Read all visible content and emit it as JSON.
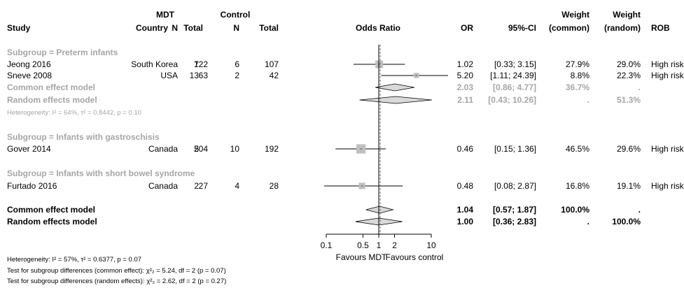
{
  "headers": {
    "study": "Study",
    "country": "Country",
    "mdt": "MDT",
    "control": "Control",
    "n": "N",
    "total": "Total",
    "odds_ratio": "Odds Ratio",
    "or": "OR",
    "ci": "95%-CI",
    "weight": "Weight",
    "weight_common": "(common)",
    "weight_random": "(random)",
    "rob": "ROB"
  },
  "footer": {
    "heterogeneity_main": "Heterogeneity: I² = 57%, τ² = 0.6377, p = 0.07",
    "test_common": "Test for subgroup differences (common effect): χ²₂ = 5.24, df = 2 (p = 0.07)",
    "test_random": "Test for subgroup differences (random effects): χ²₂ = 2.62, df = 2 (p = 0.27)"
  },
  "chart_data": {
    "type": "forest",
    "x_scale": "log",
    "xlim": [
      0.1,
      10
    ],
    "ticks": [
      "0.1",
      "0.5",
      "1",
      "2",
      "10"
    ],
    "tick_values": [
      0.1,
      0.5,
      1,
      2,
      10
    ],
    "xlabel_left": "Favours MDT",
    "xlabel_right": "Favours control",
    "reference_line": 1,
    "subgroups": [
      {
        "label": "Subgroup = Preterm infants",
        "studies": [
          {
            "study": "Jeong 2016",
            "country": "South Korea",
            "mdt_n": "7",
            "mdt_total": "122",
            "ctrl_n": "6",
            "ctrl_total": "107",
            "or_text": "1.02",
            "ci_text": "[0.33; 3.15]",
            "w_common": "27.9%",
            "w_random": "29.0%",
            "rob": "High risk",
            "or": 1.02,
            "lo": 0.33,
            "hi": 3.15,
            "w": 27.9
          },
          {
            "study": "Sneve 2008",
            "country": "USA",
            "mdt_n": "13",
            "mdt_total": "63",
            "ctrl_n": "2",
            "ctrl_total": "42",
            "or_text": "5.20",
            "ci_text": "[1.11; 24.39]",
            "w_common": "8.8%",
            "w_random": "22.3%",
            "rob": "High risk",
            "or": 5.2,
            "lo": 1.11,
            "hi": 24.39,
            "w": 8.8
          }
        ],
        "common": {
          "label": "Common effect model",
          "or_text": "2.03",
          "ci_text": "[0.86; 4.77]",
          "w_common": "36.7%",
          "w_random": ".",
          "or": 2.03,
          "lo": 0.86,
          "hi": 4.77
        },
        "random": {
          "label": "Random effects model",
          "or_text": "2.11",
          "ci_text": "[0.43; 10.26]",
          "w_common": ".",
          "w_random": "51.3%",
          "or": 2.11,
          "lo": 0.43,
          "hi": 10.26
        },
        "heterogeneity": "Heterogeneity: I² = 64%, τ² = 0.8442, p = 0.10"
      },
      {
        "label": "Subgroup = Infants with gastroschisis",
        "studies": [
          {
            "study": "Gover 2014",
            "country": "Canada",
            "mdt_n": "5",
            "mdt_total": "204",
            "ctrl_n": "10",
            "ctrl_total": "192",
            "or_text": "0.46",
            "ci_text": "[0.15; 1.36]",
            "w_common": "46.5%",
            "w_random": "29.6%",
            "rob": "High risk",
            "or": 0.46,
            "lo": 0.15,
            "hi": 1.36,
            "w": 46.5
          }
        ]
      },
      {
        "label": "Subgroup = Infants with short bowel syndrome",
        "studies": [
          {
            "study": "Furtado 2016",
            "country": "Canada",
            "mdt_n": "2",
            "mdt_total": "27",
            "ctrl_n": "4",
            "ctrl_total": "28",
            "or_text": "0.48",
            "ci_text": "[0.08; 2.87]",
            "w_common": "16.8%",
            "w_random": "19.1%",
            "rob": "High risk",
            "or": 0.48,
            "lo": 0.08,
            "hi": 2.87,
            "w": 16.8
          }
        ]
      }
    ],
    "overall": {
      "common": {
        "label": "Common effect model",
        "or_text": "1.04",
        "ci_text": "[0.57; 1.87]",
        "w_common": "100.0%",
        "w_random": ".",
        "or": 1.04,
        "lo": 0.57,
        "hi": 1.87
      },
      "random": {
        "label": "Random effects model",
        "or_text": "1.00",
        "ci_text": "[0.36; 2.83]",
        "w_common": ".",
        "w_random": "100.0%",
        "or": 1.0,
        "lo": 0.36,
        "hi": 2.83
      }
    },
    "colors": {
      "subgroup_text": "#a6a6a6",
      "box": "#bfbfbf",
      "diamond_fill": "#d9d9d9",
      "line": "#000000"
    }
  }
}
